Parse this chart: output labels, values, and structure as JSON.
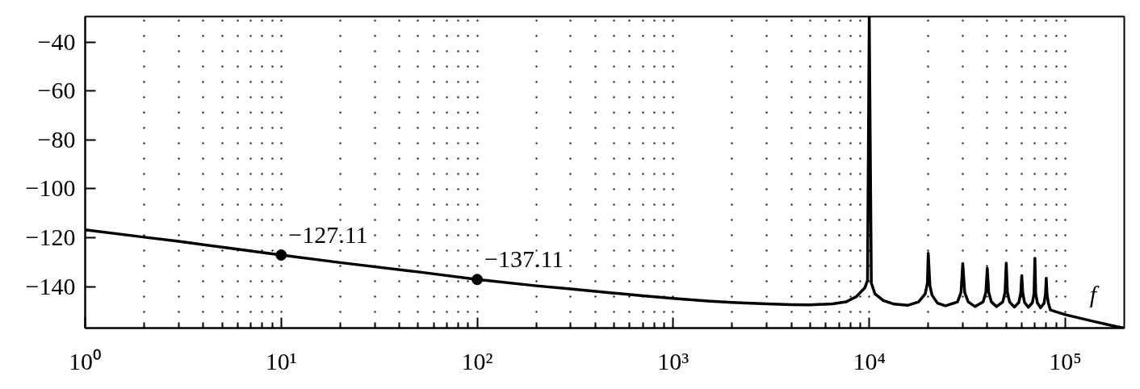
{
  "chart_data": {
    "type": "line",
    "xlabel": "f",
    "log": "x",
    "grid": "x",
    "xlim": [
      1,
      200000
    ],
    "ylim": [
      -157,
      -29.5
    ],
    "xticks": [
      {
        "value": 1,
        "label": "10⁰"
      },
      {
        "value": 2,
        "label": null
      },
      {
        "value": 3,
        "label": null
      },
      {
        "value": 4,
        "label": null
      },
      {
        "value": 5,
        "label": null
      },
      {
        "value": 6,
        "label": null
      },
      {
        "value": 7,
        "label": null
      },
      {
        "value": 8,
        "label": null
      },
      {
        "value": 9,
        "label": null
      },
      {
        "value": 10,
        "label": "10¹"
      },
      {
        "value": 20,
        "label": null
      },
      {
        "value": 30,
        "label": null
      },
      {
        "value": 40,
        "label": null
      },
      {
        "value": 50,
        "label": null
      },
      {
        "value": 60,
        "label": null
      },
      {
        "value": 70,
        "label": null
      },
      {
        "value": 80,
        "label": null
      },
      {
        "value": 90,
        "label": null
      },
      {
        "value": 100,
        "label": "10²"
      },
      {
        "value": 200,
        "label": null
      },
      {
        "value": 300,
        "label": null
      },
      {
        "value": 400,
        "label": null
      },
      {
        "value": 500,
        "label": null
      },
      {
        "value": 600,
        "label": null
      },
      {
        "value": 700,
        "label": null
      },
      {
        "value": 800,
        "label": null
      },
      {
        "value": 900,
        "label": null
      },
      {
        "value": 1000,
        "label": "10³"
      },
      {
        "value": 2000,
        "label": null
      },
      {
        "value": 3000,
        "label": null
      },
      {
        "value": 4000,
        "label": null
      },
      {
        "value": 5000,
        "label": null
      },
      {
        "value": 6000,
        "label": null
      },
      {
        "value": 7000,
        "label": null
      },
      {
        "value": 8000,
        "label": null
      },
      {
        "value": 9000,
        "label": null
      },
      {
        "value": 10000,
        "label": "10⁴"
      },
      {
        "value": 20000,
        "label": null
      },
      {
        "value": 30000,
        "label": null
      },
      {
        "value": 40000,
        "label": null
      },
      {
        "value": 50000,
        "label": null
      },
      {
        "value": 60000,
        "label": null
      },
      {
        "value": 70000,
        "label": null
      },
      {
        "value": 80000,
        "label": null
      },
      {
        "value": 90000,
        "label": null
      },
      {
        "value": 100000,
        "label": "10⁵"
      }
    ],
    "yticks": [
      {
        "value": -40,
        "label": "−40"
      },
      {
        "value": -60,
        "label": "−60"
      },
      {
        "value": -80,
        "label": "−80"
      },
      {
        "value": -100,
        "label": "−100"
      },
      {
        "value": -120,
        "label": "−120"
      },
      {
        "value": -140,
        "label": "−140"
      }
    ],
    "x": [
      1,
      2,
      3,
      5,
      10,
      20,
      50,
      100,
      200,
      300,
      500,
      700,
      1000,
      1500,
      2000,
      3000,
      4000,
      5000,
      6500,
      7600,
      8600,
      9500,
      9800,
      10000,
      10250,
      10700,
      11800,
      13400,
      15700,
      17850,
      19300,
      19800,
      20000,
      20400,
      20900,
      22300,
      24500,
      28200,
      29400,
      30000,
      30700,
      32000,
      34700,
      38100,
      39350,
      40000,
      40700,
      42000,
      44600,
      48000,
      49300,
      50000,
      50700,
      52000,
      55000,
      58000,
      59300,
      60000,
      60700,
      62000,
      64800,
      68000,
      69300,
      70000,
      70700,
      72000,
      74800,
      78000,
      79300,
      80000,
      80700,
      82000,
      84000,
      100000,
      134700,
      183000,
      200000
    ],
    "series": [
      {
        "color": "#000000",
        "values": [
          -116.8,
          -119.8,
          -121.5,
          -123.9,
          -127.1,
          -130.2,
          -134.0,
          -137.1,
          -139.7,
          -141.0,
          -142.7,
          -143.8,
          -144.9,
          -145.9,
          -146.5,
          -147.1,
          -147.4,
          -147.5,
          -147.1,
          -146.3,
          -144.1,
          -140.5,
          -137.5,
          -29.5,
          -138.6,
          -143.0,
          -145.7,
          -147.2,
          -147.7,
          -146.3,
          -143.0,
          -138.6,
          -126.4,
          -139.7,
          -143.5,
          -146.8,
          -147.9,
          -146.3,
          -142.4,
          -130.6,
          -142.4,
          -146.3,
          -148.2,
          -146.3,
          -142.4,
          -132.5,
          -142.4,
          -146.3,
          -148.2,
          -146.3,
          -142.4,
          -130.4,
          -142.4,
          -146.3,
          -148.4,
          -146.5,
          -142.6,
          -135.5,
          -142.6,
          -146.5,
          -148.5,
          -146.6,
          -142.8,
          -128.4,
          -142.8,
          -146.6,
          -148.7,
          -146.8,
          -143.0,
          -136.6,
          -143.0,
          -146.8,
          -149.6,
          -151.5,
          -154.0,
          -156.4,
          -157.0
        ]
      },
      {
        "type": "scatter",
        "color": "#000000",
        "marker": "circle",
        "x": [
          10,
          100
        ],
        "values": [
          -127.11,
          -137.11
        ],
        "value_labels": [
          "−127.11",
          "−137.11"
        ]
      }
    ]
  }
}
